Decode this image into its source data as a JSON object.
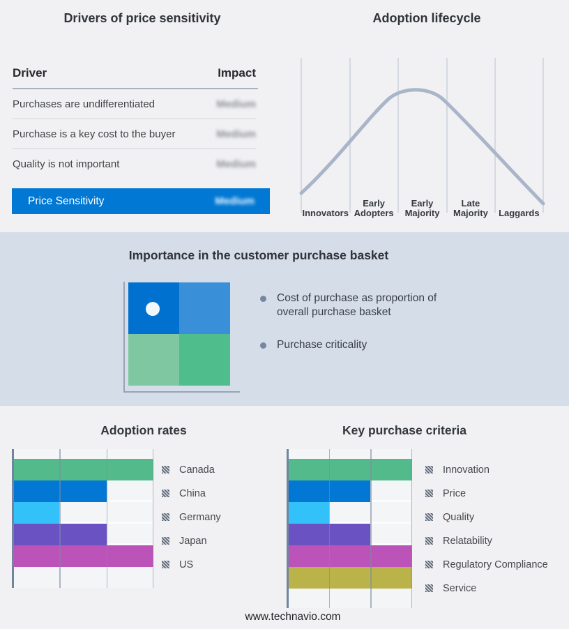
{
  "page": {
    "footer_url": "www.technavio.com"
  },
  "colors": {
    "page_bg": "#F1F1F3",
    "band_bg": "#D5DDE8",
    "accent_blue": "#0078D4",
    "curve": "#A9B5C8",
    "quadrant": {
      "top_left": "#0071CE",
      "top_right": "#3A8FD9",
      "bottom_left": "#7FC7A1",
      "bottom_right": "#4FBE8C"
    }
  },
  "drivers_panel": {
    "title": "Drivers of price sensitivity",
    "columns": {
      "driver": "Driver",
      "impact": "Impact"
    },
    "rows": [
      {
        "driver": "Purchases are undifferentiated",
        "impact": "Medium",
        "impact_blurred": true
      },
      {
        "driver": "Purchase is a key cost to the buyer",
        "impact": "Medium",
        "impact_blurred": true
      },
      {
        "driver": "Quality is not important",
        "impact": "Medium",
        "impact_blurred": true
      }
    ],
    "highlight_row": {
      "driver": "Price Sensitivity",
      "impact": "Medium",
      "impact_blurred": true
    }
  },
  "lifecycle_panel": {
    "title": "Adoption lifecycle",
    "stages": [
      "Innovators",
      "Early Adopters",
      "Early Majority",
      "Late Majority",
      "Laggards"
    ]
  },
  "basket_panel": {
    "title": "Importance in the customer purchase basket",
    "bullets": [
      "Cost of purchase as proportion of overall purchase basket",
      "Purchase criticality"
    ]
  },
  "chart_data": [
    {
      "name": "drivers-of-price-sensitivity",
      "type": "table",
      "title": "Drivers of price sensitivity",
      "columns": [
        "Driver",
        "Impact"
      ],
      "rows": [
        [
          "Purchases are undifferentiated",
          "Medium"
        ],
        [
          "Purchase is a key cost to the buyer",
          "Medium"
        ],
        [
          "Quality is not important",
          "Medium"
        ],
        [
          "Price Sensitivity",
          "Medium"
        ]
      ],
      "notes": "Impact values shown blurred; last row highlighted blue"
    },
    {
      "name": "adoption-lifecycle",
      "type": "line",
      "title": "Adoption lifecycle",
      "categories": [
        "Innovators",
        "Early Adopters",
        "Early Majority",
        "Late Majority",
        "Laggards"
      ],
      "shape": "bell curve",
      "peak_category": "Early Majority",
      "grid": "vertical stage separators only",
      "legend_position": "none"
    },
    {
      "name": "adoption-rates",
      "type": "bar",
      "title": "Adoption rates",
      "orientation": "horizontal",
      "categories": [
        "Canada",
        "China",
        "Germany",
        "Japan",
        "US"
      ],
      "values": [
        3,
        2,
        1,
        2,
        3
      ],
      "xlim": [
        0,
        3
      ],
      "value_scale": "relative gridline units (no numeric axis labels shown)",
      "colors": [
        "#53BB8B",
        "#0277D4",
        "#33C1F9",
        "#6B52C3",
        "#BC53B9"
      ],
      "grid": true,
      "legend_position": "right"
    },
    {
      "name": "key-purchase-criteria",
      "type": "bar",
      "title": "Key purchase criteria",
      "orientation": "horizontal",
      "categories": [
        "Innovation",
        "Price",
        "Quality",
        "Relatability",
        "Regulatory Compliance",
        "Service"
      ],
      "values": [
        3,
        2,
        1,
        2,
        3,
        3
      ],
      "xlim": [
        0,
        3
      ],
      "value_scale": "relative gridline units (no numeric axis labels shown)",
      "colors": [
        "#53BB8B",
        "#0277D4",
        "#33C1F9",
        "#6B52C3",
        "#BC53B9",
        "#B9B34A"
      ],
      "grid": true,
      "legend_position": "right"
    }
  ]
}
